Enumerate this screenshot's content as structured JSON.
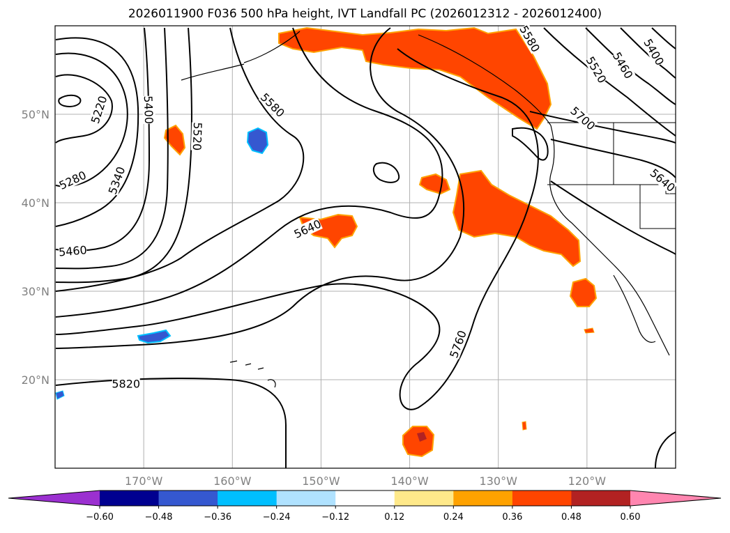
{
  "chart_data": {
    "type": "map",
    "title": "2026011900 F036 500 hPa height, IVT Landfall PC (2026012312 - 2026012400)",
    "lon_range": [
      -180,
      -110
    ],
    "lat_range": [
      10,
      60
    ],
    "x_ticks": [
      {
        "lon": -170,
        "label": "170°W"
      },
      {
        "lon": -160,
        "label": "160°W"
      },
      {
        "lon": -150,
        "label": "150°W"
      },
      {
        "lon": -140,
        "label": "140°W"
      },
      {
        "lon": -130,
        "label": "130°W"
      },
      {
        "lon": -120,
        "label": "120°W"
      }
    ],
    "y_ticks": [
      {
        "lat": 20,
        "label": "20°N"
      },
      {
        "lat": 30,
        "label": "30°N"
      },
      {
        "lat": 40,
        "label": "40°N"
      },
      {
        "lat": 50,
        "label": "50°N"
      }
    ],
    "grid": true,
    "contour_labels": [
      {
        "text": "5220",
        "lon": -175,
        "lat": 50.5,
        "rot": -72
      },
      {
        "text": "5280",
        "lon": -178,
        "lat": 42.5,
        "rot": -25
      },
      {
        "text": "5340",
        "lon": -173,
        "lat": 42.5,
        "rot": -70
      },
      {
        "text": "5400",
        "lon": -169.5,
        "lat": 50.5,
        "rot": 88
      },
      {
        "text": "5460",
        "lon": -178,
        "lat": 34.5,
        "rot": -5
      },
      {
        "text": "5520",
        "lon": -164,
        "lat": 47.5,
        "rot": 92
      },
      {
        "text": "5580",
        "lon": -155.5,
        "lat": 51,
        "rot": 45
      },
      {
        "text": "5640",
        "lon": -151.5,
        "lat": 37,
        "rot": -25
      },
      {
        "text": "5700",
        "lon": -120.5,
        "lat": 49.5,
        "rot": 42
      },
      {
        "text": "5760",
        "lon": -134.5,
        "lat": 24,
        "rot": -70
      },
      {
        "text": "5820",
        "lon": -172,
        "lat": 19.5,
        "rot": 0
      },
      {
        "text": "5580",
        "lon": -126.5,
        "lat": 58.5,
        "rot": 60
      },
      {
        "text": "5520",
        "lon": -119,
        "lat": 55,
        "rot": 60
      },
      {
        "text": "5460",
        "lon": -116,
        "lat": 55.5,
        "rot": 60
      },
      {
        "text": "5400",
        "lon": -112.5,
        "lat": 57,
        "rot": 60
      },
      {
        "text": "5640",
        "lon": -111.5,
        "lat": 42.5,
        "rot": 40
      }
    ],
    "colorbar": {
      "ticks": [
        -0.6,
        -0.48,
        -0.36,
        -0.24,
        -0.12,
        0.12,
        0.24,
        0.36,
        0.48,
        0.6
      ],
      "tick_labels": [
        "−0.60",
        "−0.48",
        "−0.36",
        "−0.24",
        "−0.12",
        "0.12",
        "0.24",
        "0.36",
        "0.48",
        "0.60"
      ],
      "colors": [
        "#9b30d0",
        "#000090",
        "#3558d0",
        "#00bfff",
        "#b0e2ff",
        "#ffffff",
        "#ffe98a",
        "#ffa200",
        "#ff4500",
        "#b22222",
        "#ff86b0"
      ]
    }
  }
}
